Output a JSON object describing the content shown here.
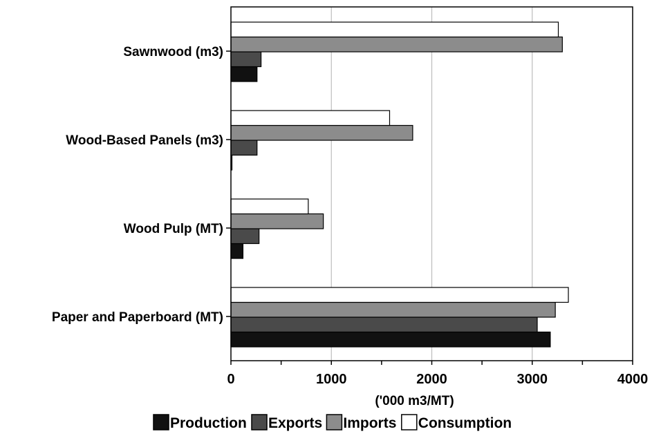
{
  "chart_data": {
    "type": "bar",
    "orientation": "horizontal",
    "categories": [
      "Sawnwood (m3)",
      "Wood-Based Panels (m3)",
      "Wood Pulp (MT)",
      "Paper and Paperboard (MT)"
    ],
    "series": [
      {
        "name": "Production",
        "color": "#111111",
        "values": [
          260,
          10,
          120,
          3180
        ]
      },
      {
        "name": "Exports",
        "color": "#4a4a4a",
        "values": [
          300,
          260,
          280,
          3050
        ]
      },
      {
        "name": "Imports",
        "color": "#8c8c8c",
        "values": [
          3300,
          1810,
          920,
          3230
        ]
      },
      {
        "name": "Consumption",
        "color": "#ffffff",
        "values": [
          3260,
          1580,
          770,
          3360
        ]
      }
    ],
    "xlabel": "('000 m3/MT)",
    "xlim": [
      0,
      4000
    ],
    "xticks": [
      0,
      1000,
      2000,
      3000,
      4000
    ],
    "grid": true,
    "legend_position": "bottom"
  }
}
